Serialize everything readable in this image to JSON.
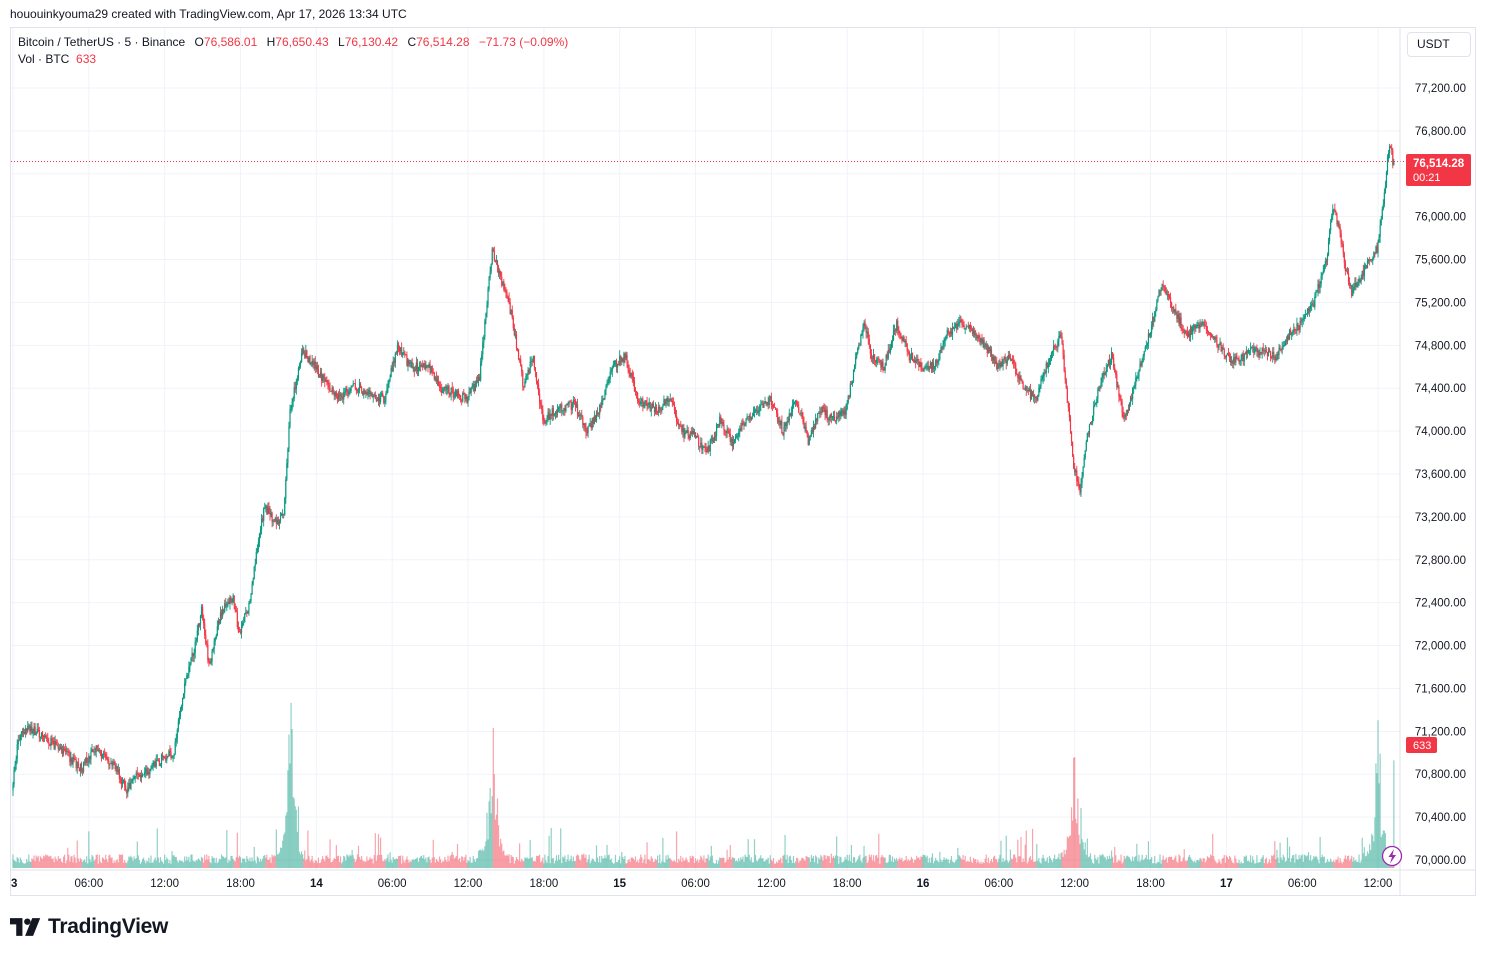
{
  "caption": "hououinkyouma29 created with TradingView.com, Apr 17, 2026 13:34 UTC",
  "legend": {
    "symbol": "Bitcoin / TetherUS · 5 · Binance",
    "o_label": "O",
    "o_value": "76,586.01",
    "h_label": "H",
    "h_value": "76,650.43",
    "l_label": "L",
    "l_value": "76,130.42",
    "c_label": "C",
    "c_value": "76,514.28",
    "change": "−71.73 (−0.09%)",
    "vol_label": "Vol · BTC",
    "vol_value": "633"
  },
  "currency_button": "USDT",
  "price_tag": {
    "price": "76,514.28",
    "countdown": "00:21"
  },
  "volume_tag": "633",
  "brand": "TradingView",
  "icons": {
    "alert": "lightning-icon",
    "logo": "tradingview-logo-icon"
  },
  "colors": {
    "up": "#089981",
    "down": "#f23645",
    "grid": "#f0f3fa",
    "axis_text": "#131722"
  },
  "chart_data": {
    "type": "candlestick",
    "title": "Bitcoin / TetherUS · 5 · Binance",
    "interval": "5 minutes",
    "y_axis": {
      "ticks": [
        "77,200.00",
        "76,800.00",
        "76,400.00",
        "76,000.00",
        "75,600.00",
        "75,200.00",
        "74,800.00",
        "74,400.00",
        "74,000.00",
        "73,600.00",
        "73,200.00",
        "72,800.00",
        "72,400.00",
        "72,000.00",
        "71,600.00",
        "71,200.00",
        "70,800.00",
        "70,400.00",
        "70,000.00"
      ],
      "tick_values": [
        77200,
        76800,
        76400,
        76000,
        75600,
        75200,
        74800,
        74400,
        74000,
        73600,
        73200,
        72800,
        72400,
        72000,
        71600,
        71200,
        70800,
        70400,
        70000
      ],
      "range": [
        69930,
        77460
      ],
      "position": "right"
    },
    "x_axis": {
      "ticks": [
        "3",
        "06:00",
        "12:00",
        "18:00",
        "14",
        "06:00",
        "12:00",
        "18:00",
        "15",
        "06:00",
        "12:00",
        "18:00",
        "16",
        "06:00",
        "12:00",
        "18:00",
        "17",
        "06:00",
        "12:00"
      ],
      "tick_hours": [
        0,
        6,
        12,
        18,
        24,
        30,
        36,
        42,
        48,
        54,
        60,
        66,
        72,
        78,
        84,
        90,
        96,
        102,
        108
      ],
      "range_hours": [
        0,
        109.5
      ]
    },
    "last_price": 76514.28,
    "price_path": [
      [
        0,
        70650
      ],
      [
        0.5,
        71150
      ],
      [
        1.5,
        71230
      ],
      [
        3,
        71100
      ],
      [
        4,
        71020
      ],
      [
        5.5,
        70850
      ],
      [
        6.5,
        71050
      ],
      [
        7.5,
        70950
      ],
      [
        8.5,
        70800
      ],
      [
        9,
        70650
      ],
      [
        10,
        70800
      ],
      [
        11,
        70850
      ],
      [
        12,
        70950
      ],
      [
        12.8,
        71000
      ],
      [
        13.2,
        71300
      ],
      [
        13.8,
        71700
      ],
      [
        14.5,
        72000
      ],
      [
        15,
        72350
      ],
      [
        15.6,
        71800
      ],
      [
        16.5,
        72300
      ],
      [
        17.5,
        72450
      ],
      [
        18,
        72100
      ],
      [
        18.8,
        72400
      ],
      [
        19.5,
        73000
      ],
      [
        20,
        73300
      ],
      [
        20.8,
        73150
      ],
      [
        21.5,
        73200
      ],
      [
        22,
        74200
      ],
      [
        23,
        74750
      ],
      [
        24,
        74600
      ],
      [
        25,
        74400
      ],
      [
        26,
        74300
      ],
      [
        27,
        74450
      ],
      [
        28,
        74350
      ],
      [
        29.5,
        74300
      ],
      [
        30.5,
        74800
      ],
      [
        31.5,
        74600
      ],
      [
        33,
        74600
      ],
      [
        34,
        74400
      ],
      [
        35,
        74350
      ],
      [
        36,
        74300
      ],
      [
        37,
        74500
      ],
      [
        38,
        75700
      ],
      [
        38.5,
        75500
      ],
      [
        39.5,
        75100
      ],
      [
        40.5,
        74400
      ],
      [
        41.2,
        74700
      ],
      [
        42,
        74100
      ],
      [
        43,
        74200
      ],
      [
        44.5,
        74250
      ],
      [
        45.5,
        74000
      ],
      [
        46.5,
        74200
      ],
      [
        47.5,
        74600
      ],
      [
        48.5,
        74700
      ],
      [
        49.5,
        74300
      ],
      [
        51,
        74200
      ],
      [
        52,
        74300
      ],
      [
        53,
        74000
      ],
      [
        54,
        73950
      ],
      [
        55,
        73800
      ],
      [
        56,
        74100
      ],
      [
        57,
        73900
      ],
      [
        58,
        74100
      ],
      [
        59,
        74200
      ],
      [
        60,
        74300
      ],
      [
        61,
        74000
      ],
      [
        62,
        74300
      ],
      [
        63,
        73900
      ],
      [
        64,
        74200
      ],
      [
        65,
        74100
      ],
      [
        66,
        74200
      ],
      [
        67,
        74800
      ],
      [
        67.5,
        75000
      ],
      [
        68,
        74700
      ],
      [
        69,
        74600
      ],
      [
        70,
        75000
      ],
      [
        71,
        74700
      ],
      [
        72,
        74600
      ],
      [
        73,
        74600
      ],
      [
        74,
        74900
      ],
      [
        75,
        75000
      ],
      [
        76,
        74950
      ],
      [
        77,
        74800
      ],
      [
        78,
        74600
      ],
      [
        79,
        74700
      ],
      [
        80,
        74400
      ],
      [
        81,
        74300
      ],
      [
        82,
        74650
      ],
      [
        83,
        74900
      ],
      [
        84,
        73700
      ],
      [
        84.5,
        73400
      ],
      [
        85,
        73900
      ],
      [
        86,
        74400
      ],
      [
        87,
        74700
      ],
      [
        88,
        74100
      ],
      [
        89,
        74500
      ],
      [
        90,
        74900
      ],
      [
        91,
        75400
      ],
      [
        92,
        75100
      ],
      [
        93,
        74900
      ],
      [
        94,
        75000
      ],
      [
        95,
        74900
      ],
      [
        96,
        74700
      ],
      [
        97,
        74650
      ],
      [
        98,
        74750
      ],
      [
        99,
        74750
      ],
      [
        100,
        74700
      ],
      [
        101,
        74900
      ],
      [
        102,
        75000
      ],
      [
        103,
        75200
      ],
      [
        104,
        75600
      ],
      [
        104.5,
        76100
      ],
      [
        105,
        75900
      ],
      [
        105.5,
        75500
      ],
      [
        106,
        75300
      ],
      [
        107,
        75500
      ],
      [
        108,
        75700
      ],
      [
        108.5,
        76100
      ],
      [
        109,
        76700
      ],
      [
        109.25,
        76514.28
      ]
    ],
    "volume": {
      "unit": "BTC",
      "last": 633,
      "spikes": [
        {
          "hour": 22,
          "value": 1200
        },
        {
          "hour": 38,
          "value": 950
        },
        {
          "hour": 84,
          "value": 750
        },
        {
          "hour": 108,
          "value": 760
        }
      ]
    }
  }
}
